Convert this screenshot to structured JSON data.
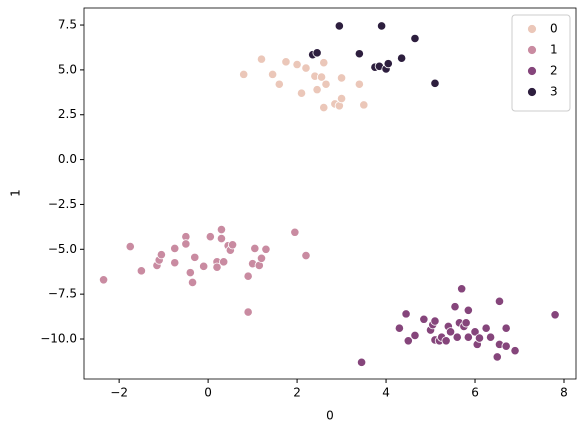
{
  "chart_data": {
    "type": "scatter",
    "xlabel": "0",
    "ylabel": "1",
    "xlim": [
      -2.79,
      8.27
    ],
    "ylim": [
      -12.23,
      8.45
    ],
    "xticks": [
      {
        "value": -2,
        "label": "−2"
      },
      0,
      2,
      4,
      6,
      8
    ],
    "yticks": [
      {
        "value": -10,
        "label": "−10.0"
      },
      {
        "value": -7.5,
        "label": "−7.5"
      },
      {
        "value": -5,
        "label": "−5.0"
      },
      {
        "value": -2.5,
        "label": "−2.5"
      },
      {
        "value": 0,
        "label": "0.0"
      },
      {
        "value": 2.5,
        "label": "2.5"
      },
      {
        "value": 5,
        "label": "5.0"
      },
      7.5
    ],
    "legend": "upper right",
    "series": [
      {
        "name": "0",
        "color": "#ebc7b9",
        "x": [
          0.8,
          1.2,
          1.45,
          1.6,
          1.75,
          2.0,
          2.1,
          2.2,
          2.4,
          2.45,
          2.55,
          2.6,
          2.65,
          2.6,
          2.85,
          2.95,
          3.0,
          3.0,
          3.4,
          3.5
        ],
        "y": [
          4.75,
          5.6,
          4.75,
          4.2,
          5.45,
          5.3,
          3.7,
          5.1,
          4.65,
          3.9,
          4.6,
          5.4,
          4.2,
          2.9,
          3.1,
          3.0,
          4.55,
          3.4,
          4.2,
          3.05
        ]
      },
      {
        "name": "1",
        "color": "#c98ba1",
        "x": [
          -2.35,
          -1.75,
          -1.5,
          -1.15,
          -1.1,
          -1.05,
          -0.75,
          -0.75,
          -0.5,
          -0.5,
          -0.4,
          -0.35,
          -0.3,
          -0.1,
          0.05,
          0.2,
          0.2,
          0.3,
          0.3,
          0.35,
          0.45,
          0.5,
          0.55,
          0.9,
          0.9,
          1.0,
          1.05,
          1.15,
          1.2,
          1.3,
          1.95,
          2.2
        ],
        "y": [
          -6.7,
          -4.85,
          -6.2,
          -5.9,
          -5.6,
          -5.3,
          -4.95,
          -5.75,
          -4.3,
          -4.7,
          -6.3,
          -6.85,
          -5.45,
          -5.95,
          -4.3,
          -5.7,
          -6.0,
          -3.9,
          -4.4,
          -5.7,
          -4.8,
          -5.05,
          -4.75,
          -6.5,
          -8.5,
          -5.8,
          -4.95,
          -5.9,
          -5.5,
          -5.0,
          -4.05,
          -5.35
        ]
      },
      {
        "name": "2",
        "color": "#85457b",
        "x": [
          3.45,
          4.3,
          4.45,
          4.5,
          4.65,
          4.85,
          5.0,
          5.05,
          5.1,
          5.1,
          5.2,
          5.25,
          5.35,
          5.4,
          5.45,
          5.55,
          5.6,
          5.65,
          5.7,
          5.75,
          5.8,
          5.85,
          5.85,
          6.0,
          6.05,
          6.1,
          6.25,
          6.35,
          6.5,
          6.55,
          6.55,
          6.7,
          6.7,
          6.9,
          7.8
        ],
        "y": [
          -11.3,
          -9.4,
          -8.6,
          -10.1,
          -9.8,
          -8.9,
          -9.5,
          -9.2,
          -10.05,
          -9.0,
          -10.1,
          -9.9,
          -10.1,
          -9.3,
          -9.6,
          -8.2,
          -9.9,
          -9.1,
          -7.2,
          -9.3,
          -9.1,
          -9.9,
          -8.4,
          -9.6,
          -10.3,
          -9.95,
          -9.4,
          -9.9,
          -11.0,
          -7.9,
          -10.3,
          -9.4,
          -10.4,
          -10.65,
          -8.65
        ]
      },
      {
        "name": "3",
        "color": "#2d1e3e",
        "x": [
          2.35,
          2.45,
          2.95,
          3.4,
          3.75,
          3.85,
          3.9,
          4.0,
          4.05,
          4.35,
          4.65,
          5.1
        ],
        "y": [
          5.85,
          5.95,
          7.45,
          5.9,
          5.15,
          5.2,
          7.45,
          5.05,
          5.35,
          5.65,
          6.75,
          4.25
        ]
      }
    ]
  }
}
